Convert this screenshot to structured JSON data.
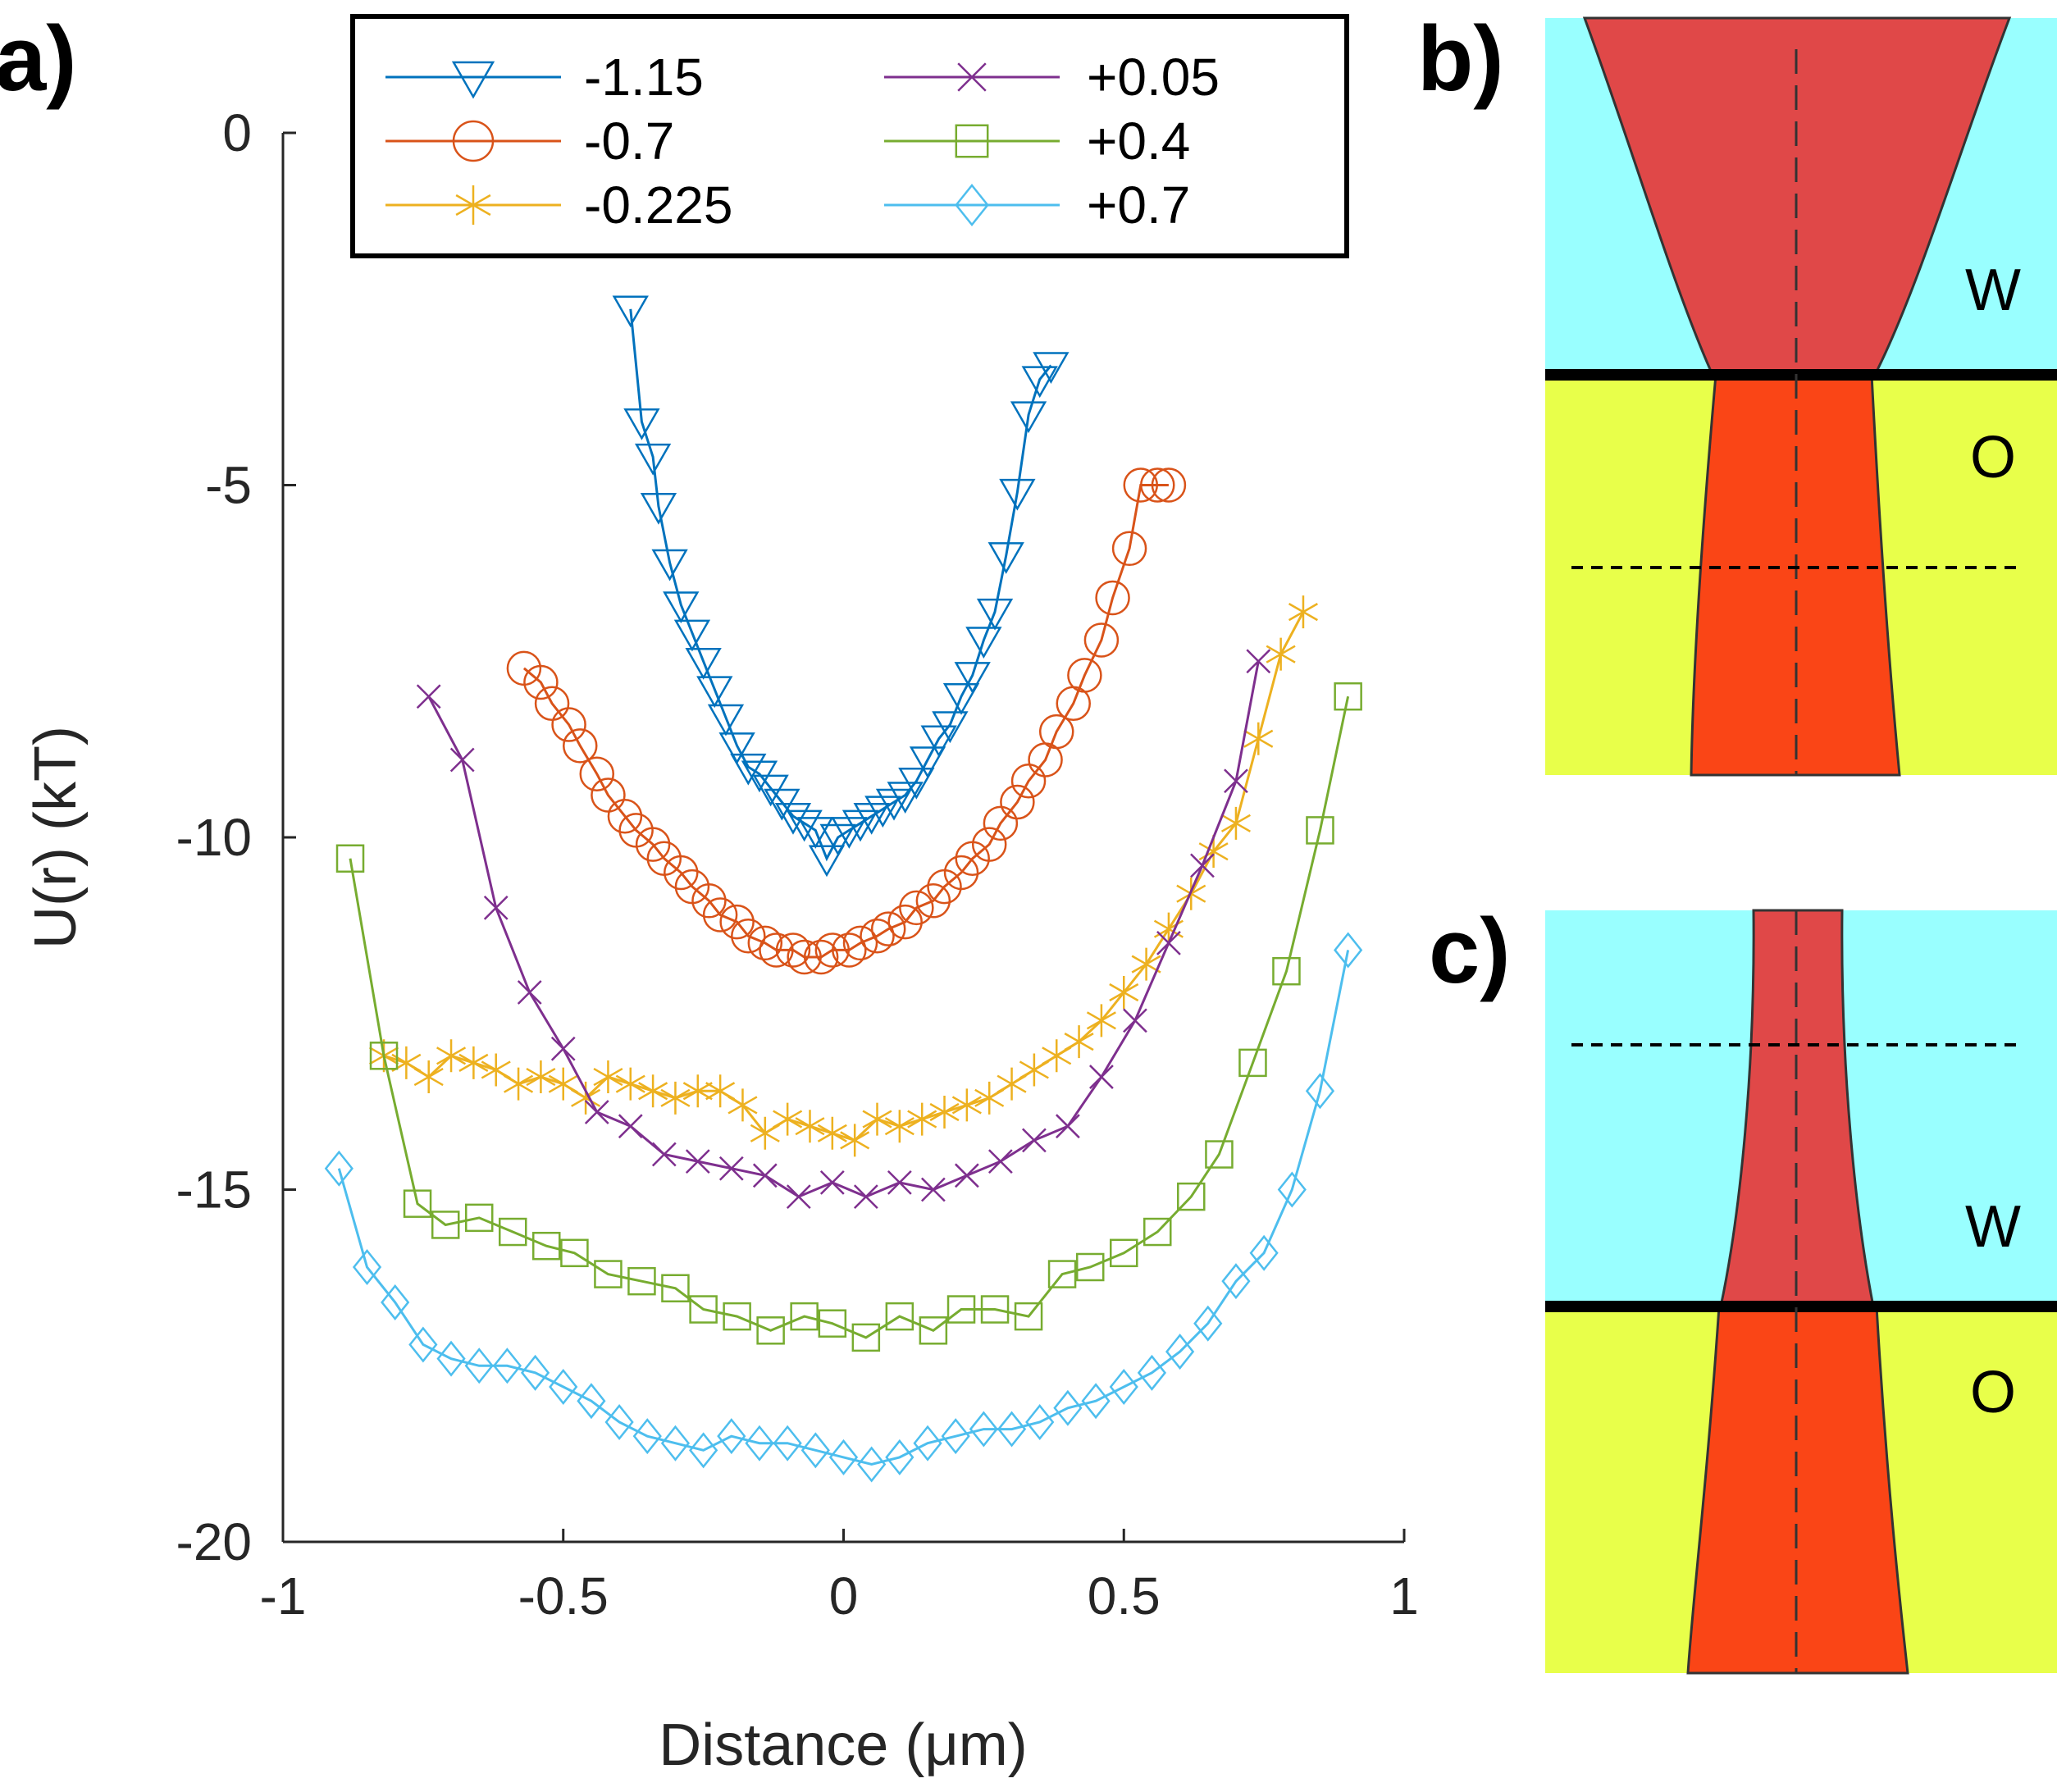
{
  "panel_labels": {
    "a": "a)",
    "b": "b)",
    "c": "c)"
  },
  "chart_data": {
    "type": "line",
    "xlabel": "Distance (μm)",
    "ylabel": "U(r) (kT)",
    "xlim": [
      -1,
      1
    ],
    "ylim": [
      -20,
      0
    ],
    "xticks": [
      "-1",
      "-0.5",
      "0",
      "0.5",
      "1"
    ],
    "yticks": [
      "0",
      "-5",
      "-10",
      "-15",
      "-20"
    ],
    "legend_position": "top",
    "series": [
      {
        "name": "-1.15",
        "color": "#0072BD",
        "marker": "triangle-down",
        "x": [
          -0.38,
          -0.36,
          -0.34,
          -0.33,
          -0.31,
          -0.29,
          -0.27,
          -0.25,
          -0.23,
          -0.21,
          -0.19,
          -0.17,
          -0.15,
          -0.13,
          -0.11,
          -0.09,
          -0.07,
          -0.05,
          -0.03,
          -0.01,
          0.01,
          0.03,
          0.05,
          0.07,
          0.09,
          0.11,
          0.13,
          0.15,
          0.17,
          0.19,
          0.21,
          0.23,
          0.25,
          0.27,
          0.29,
          0.31,
          0.33,
          0.35,
          0.37
        ],
        "y": [
          -2.5,
          -4.1,
          -4.6,
          -5.3,
          -6.1,
          -6.7,
          -7.1,
          -7.5,
          -7.9,
          -8.3,
          -8.7,
          -9.0,
          -9.1,
          -9.3,
          -9.5,
          -9.7,
          -9.8,
          -9.9,
          -10.3,
          -10.0,
          -9.9,
          -9.8,
          -9.7,
          -9.6,
          -9.5,
          -9.4,
          -9.2,
          -8.9,
          -8.6,
          -8.4,
          -8.0,
          -7.7,
          -7.2,
          -6.8,
          -6.0,
          -5.1,
          -4.0,
          -3.5,
          -3.3
        ]
      },
      {
        "name": "-0.7",
        "color": "#D95319",
        "marker": "circle",
        "x": [
          -0.57,
          -0.54,
          -0.52,
          -0.49,
          -0.47,
          -0.44,
          -0.42,
          -0.39,
          -0.37,
          -0.34,
          -0.32,
          -0.29,
          -0.27,
          -0.24,
          -0.22,
          -0.19,
          -0.17,
          -0.14,
          -0.12,
          -0.09,
          -0.07,
          -0.04,
          -0.02,
          0.01,
          0.03,
          0.06,
          0.08,
          0.11,
          0.13,
          0.16,
          0.18,
          0.21,
          0.23,
          0.26,
          0.28,
          0.31,
          0.33,
          0.36,
          0.38,
          0.41,
          0.43,
          0.46,
          0.48,
          0.51,
          0.53,
          0.56,
          0.58
        ],
        "y": [
          -7.6,
          -7.8,
          -8.1,
          -8.4,
          -8.7,
          -9.1,
          -9.4,
          -9.7,
          -9.9,
          -10.1,
          -10.3,
          -10.5,
          -10.7,
          -10.9,
          -11.1,
          -11.2,
          -11.4,
          -11.5,
          -11.6,
          -11.6,
          -11.7,
          -11.7,
          -11.6,
          -11.6,
          -11.5,
          -11.4,
          -11.3,
          -11.2,
          -11.0,
          -10.9,
          -10.7,
          -10.5,
          -10.3,
          -10.1,
          -9.8,
          -9.5,
          -9.2,
          -8.9,
          -8.5,
          -8.1,
          -7.7,
          -7.2,
          -6.6,
          -5.9,
          -5.0,
          -5.0,
          -5.0
        ]
      },
      {
        "name": "-0.225",
        "color": "#EDB120",
        "marker": "asterisk",
        "x": [
          -0.82,
          -0.78,
          -0.74,
          -0.7,
          -0.66,
          -0.62,
          -0.58,
          -0.54,
          -0.5,
          -0.46,
          -0.42,
          -0.38,
          -0.34,
          -0.3,
          -0.26,
          -0.22,
          -0.18,
          -0.14,
          -0.1,
          -0.06,
          -0.02,
          0.02,
          0.06,
          0.1,
          0.14,
          0.18,
          0.22,
          0.26,
          0.3,
          0.34,
          0.38,
          0.42,
          0.46,
          0.5,
          0.54,
          0.58,
          0.62,
          0.66,
          0.7,
          0.74,
          0.78,
          0.82
        ],
        "y": [
          -13.1,
          -13.2,
          -13.4,
          -13.1,
          -13.2,
          -13.3,
          -13.5,
          -13.4,
          -13.5,
          -13.7,
          -13.4,
          -13.5,
          -13.6,
          -13.7,
          -13.6,
          -13.6,
          -13.8,
          -14.2,
          -14.0,
          -14.1,
          -14.2,
          -14.3,
          -14.0,
          -14.1,
          -14.0,
          -13.9,
          -13.8,
          -13.7,
          -13.5,
          -13.3,
          -13.1,
          -12.9,
          -12.6,
          -12.2,
          -11.8,
          -11.3,
          -10.8,
          -10.2,
          -9.8,
          -8.6,
          -7.4,
          -6.8
        ]
      },
      {
        "name": "+0.05",
        "color": "#7E2F8E",
        "marker": "x",
        "x": [
          -0.74,
          -0.68,
          -0.62,
          -0.56,
          -0.5,
          -0.44,
          -0.38,
          -0.32,
          -0.26,
          -0.2,
          -0.14,
          -0.08,
          -0.02,
          0.04,
          0.1,
          0.16,
          0.22,
          0.28,
          0.34,
          0.4,
          0.46,
          0.52,
          0.58,
          0.64,
          0.7,
          0.74
        ],
        "y": [
          -8.0,
          -8.9,
          -11.0,
          -12.2,
          -13.0,
          -13.9,
          -14.1,
          -14.5,
          -14.6,
          -14.7,
          -14.8,
          -15.1,
          -14.9,
          -15.1,
          -14.9,
          -15.0,
          -14.8,
          -14.6,
          -14.3,
          -14.1,
          -13.4,
          -12.6,
          -11.5,
          -10.4,
          -9.2,
          -7.5
        ]
      },
      {
        "name": "+0.4",
        "color": "#77AC30",
        "marker": "square",
        "x": [
          -0.88,
          -0.82,
          -0.76,
          -0.71,
          -0.65,
          -0.59,
          -0.53,
          -0.48,
          -0.42,
          -0.36,
          -0.3,
          -0.25,
          -0.19,
          -0.13,
          -0.07,
          -0.02,
          0.04,
          0.1,
          0.16,
          0.21,
          0.27,
          0.33,
          0.39,
          0.44,
          0.5,
          0.56,
          0.62,
          0.67,
          0.73,
          0.79,
          0.85,
          0.9
        ],
        "y": [
          -10.3,
          -13.1,
          -15.2,
          -15.5,
          -15.4,
          -15.6,
          -15.8,
          -15.9,
          -16.2,
          -16.3,
          -16.4,
          -16.7,
          -16.8,
          -17.0,
          -16.8,
          -16.9,
          -17.1,
          -16.8,
          -17.0,
          -16.7,
          -16.7,
          -16.8,
          -16.2,
          -16.1,
          -15.9,
          -15.6,
          -15.1,
          -14.5,
          -13.2,
          -11.9,
          -9.9,
          -8.0
        ]
      },
      {
        "name": "+0.7",
        "color": "#4DBEEE",
        "marker": "diamond",
        "x": [
          -0.9,
          -0.85,
          -0.8,
          -0.75,
          -0.7,
          -0.65,
          -0.6,
          -0.55,
          -0.5,
          -0.45,
          -0.4,
          -0.35,
          -0.3,
          -0.25,
          -0.2,
          -0.15,
          -0.1,
          -0.05,
          0.0,
          0.05,
          0.1,
          0.15,
          0.2,
          0.25,
          0.3,
          0.35,
          0.4,
          0.45,
          0.5,
          0.55,
          0.6,
          0.65,
          0.7,
          0.75,
          0.8,
          0.85,
          0.9
        ],
        "y": [
          -14.7,
          -16.1,
          -16.6,
          -17.2,
          -17.4,
          -17.5,
          -17.5,
          -17.6,
          -17.8,
          -18.0,
          -18.3,
          -18.5,
          -18.6,
          -18.7,
          -18.5,
          -18.6,
          -18.6,
          -18.7,
          -18.8,
          -18.9,
          -18.8,
          -18.6,
          -18.5,
          -18.4,
          -18.4,
          -18.3,
          -18.1,
          -18.0,
          -17.8,
          -17.6,
          -17.3,
          -16.9,
          -16.3,
          -15.9,
          -15.0,
          -13.6,
          -11.6
        ]
      }
    ]
  },
  "panels": {
    "b": {
      "water_label": "W",
      "oil_label": "O"
    },
    "c": {
      "water_label": "W",
      "oil_label": "O"
    }
  },
  "colors": {
    "water": "#99FFFF",
    "oil": "#E8FF4A",
    "droplet_water_side": "#E04848",
    "droplet_oil_side": "#FA4516"
  }
}
